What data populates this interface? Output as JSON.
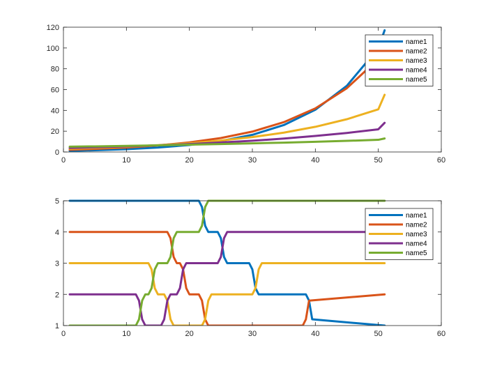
{
  "chart_data": [
    {
      "type": "line",
      "title": "",
      "xlabel": "",
      "ylabel": "",
      "xlim": [
        0,
        60
      ],
      "ylim": [
        0,
        120
      ],
      "xticks": [
        0,
        10,
        20,
        30,
        40,
        50,
        60
      ],
      "yticks": [
        0,
        20,
        40,
        60,
        80,
        100,
        120
      ],
      "grid": false,
      "legend_position": "top-right",
      "series": [
        {
          "name": "name1",
          "color": "#0072BD",
          "x": [
            1,
            5,
            10,
            15,
            20,
            25,
            30,
            35,
            40,
            45,
            50,
            51
          ],
          "y": [
            1.1,
            1.7,
            2.7,
            4.3,
            6.7,
            10.5,
            16.5,
            25.9,
            40.6,
            63.6,
            99.8,
            117.0
          ]
        },
        {
          "name": "name2",
          "color": "#D95319",
          "x": [
            1,
            5,
            10,
            15,
            20,
            25,
            30,
            35,
            40,
            45,
            50,
            51
          ],
          "y": [
            2.1,
            2.9,
            4.3,
            6.3,
            9.2,
            13.4,
            19.6,
            28.7,
            41.9,
            61.3,
            89.5,
            95.0
          ]
        },
        {
          "name": "name3",
          "color": "#EDB120",
          "x": [
            1,
            5,
            10,
            15,
            20,
            25,
            30,
            35,
            40,
            45,
            50,
            51
          ],
          "y": [
            3.1,
            3.9,
            5.0,
            6.5,
            8.4,
            11.0,
            14.3,
            18.6,
            24.2,
            31.5,
            41.0,
            55.0
          ]
        },
        {
          "name": "name4",
          "color": "#7E2F8E",
          "x": [
            1,
            5,
            10,
            15,
            20,
            25,
            30,
            35,
            40,
            45,
            50,
            51
          ],
          "y": [
            3.9,
            4.5,
            5.4,
            6.4,
            7.6,
            9.1,
            10.8,
            12.9,
            15.4,
            18.3,
            21.8,
            28.0
          ]
        },
        {
          "name": "name5",
          "color": "#77AC30",
          "x": [
            1,
            5,
            10,
            15,
            20,
            25,
            30,
            35,
            40,
            45,
            50,
            51
          ],
          "y": [
            5.1,
            5.4,
            5.9,
            6.4,
            7.0,
            7.6,
            8.3,
            9.0,
            9.8,
            10.7,
            11.7,
            13.0
          ]
        }
      ]
    },
    {
      "type": "line",
      "title": "",
      "xlabel": "",
      "ylabel": "",
      "xlim": [
        0,
        60
      ],
      "ylim": [
        1,
        5
      ],
      "xticks": [
        0,
        10,
        20,
        30,
        40,
        50,
        60
      ],
      "yticks": [
        1,
        2,
        3,
        4,
        5
      ],
      "grid": false,
      "legend_position": "top-right",
      "series": [
        {
          "name": "name1",
          "color": "#0072BD",
          "x": [
            1,
            21.5,
            22.0,
            22.5,
            23,
            24.5,
            25.0,
            25.5,
            26,
            29.5,
            30.0,
            30.5,
            31,
            38.5,
            39.0,
            39.5,
            51
          ],
          "y": [
            5,
            5,
            4.8,
            4.2,
            4,
            4,
            3.8,
            3.2,
            3,
            3,
            2.8,
            2.2,
            2,
            2,
            1.8,
            1.2,
            1
          ]
        },
        {
          "name": "name2",
          "color": "#D95319",
          "x": [
            1,
            16.5,
            17.0,
            17.5,
            18,
            18.5,
            19.0,
            19.5,
            20,
            21.5,
            22.0,
            22.5,
            23,
            38.0,
            38.5,
            39.0,
            51
          ],
          "y": [
            4,
            4,
            3.8,
            3.2,
            3,
            3,
            2.8,
            2.2,
            2,
            2,
            1.8,
            1.2,
            1,
            1,
            1.2,
            1.8,
            2
          ]
        },
        {
          "name": "name3",
          "color": "#EDB120",
          "x": [
            1,
            13.5,
            14.0,
            14.5,
            15,
            16.0,
            16.5,
            17.0,
            17.5,
            22.0,
            22.5,
            23.0,
            23.5,
            30.0,
            30.5,
            31.0,
            31.5,
            51
          ],
          "y": [
            3,
            3,
            2.8,
            2.2,
            2,
            2,
            1.8,
            1.2,
            1,
            1,
            1.2,
            1.8,
            2,
            2,
            2.2,
            2.8,
            3,
            3
          ]
        },
        {
          "name": "name4",
          "color": "#7E2F8E",
          "x": [
            1,
            11.5,
            12.0,
            12.5,
            13,
            15.5,
            16.0,
            16.5,
            17,
            18.0,
            18.5,
            19.0,
            19.5,
            24.5,
            25.0,
            25.5,
            26,
            51
          ],
          "y": [
            2,
            2,
            1.8,
            1.2,
            1,
            1,
            1.2,
            1.8,
            2,
            2,
            2.2,
            2.8,
            3,
            3,
            3.2,
            3.8,
            4,
            4
          ]
        },
        {
          "name": "name5",
          "color": "#77AC30",
          "x": [
            1,
            11.5,
            12.0,
            12.5,
            13,
            13.5,
            14.0,
            14.5,
            15,
            16.5,
            17.0,
            17.5,
            18,
            21.5,
            22.0,
            22.5,
            23,
            51
          ],
          "y": [
            1,
            1,
            1.2,
            1.8,
            2,
            2,
            2.2,
            2.8,
            3,
            3,
            3.2,
            3.8,
            4,
            4,
            4.2,
            4.8,
            5,
            5
          ]
        }
      ]
    }
  ]
}
